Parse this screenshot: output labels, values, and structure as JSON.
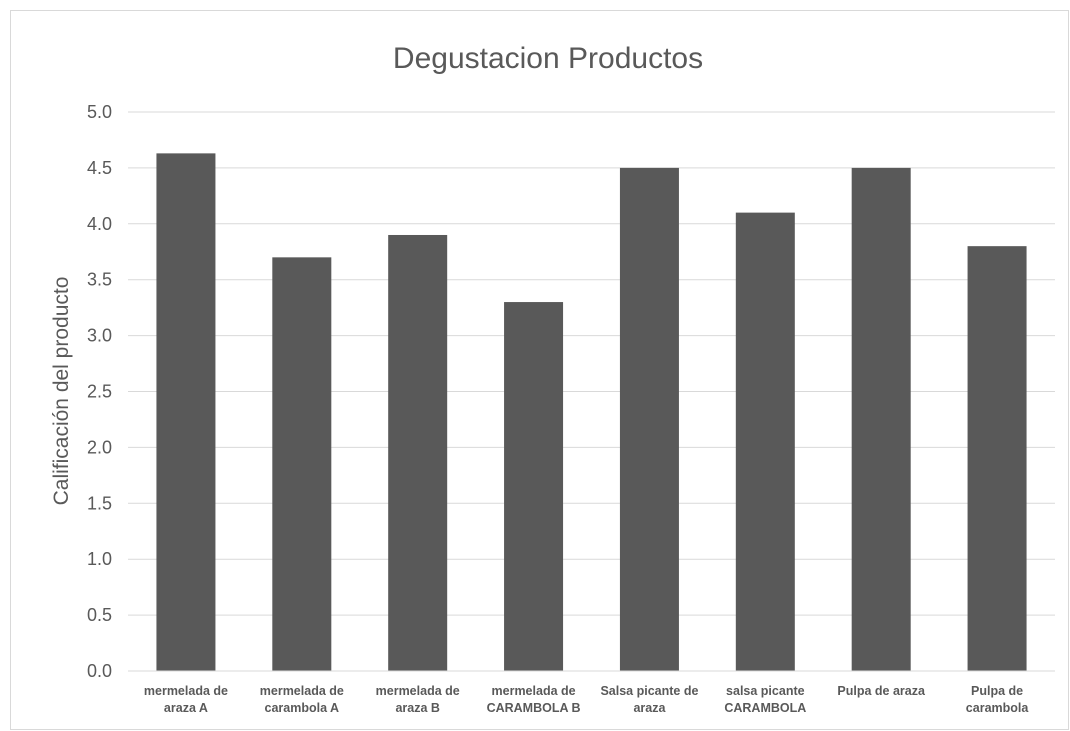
{
  "chart_data": {
    "type": "bar",
    "title": "Degustacion Productos",
    "xlabel": "",
    "ylabel": "Calificación del producto",
    "ylim": [
      0,
      5
    ],
    "yticks": [
      "0.0",
      "0.5",
      "1.0",
      "1.5",
      "2.0",
      "2.5",
      "3.0",
      "3.5",
      "4.0",
      "4.5",
      "5.0"
    ],
    "grid": true,
    "legend": "none",
    "bar_color": "#595959",
    "categories": [
      [
        "mermelada de",
        "araza A"
      ],
      [
        "mermelada de",
        "carambola A"
      ],
      [
        "mermelada de",
        "araza B"
      ],
      [
        "mermelada de",
        "CARAMBOLA B"
      ],
      [
        "Salsa picante de",
        "araza"
      ],
      [
        "salsa picante",
        "CARAMBOLA"
      ],
      [
        "Pulpa de araza"
      ],
      [
        "Pulpa de",
        "carambola"
      ]
    ],
    "values": [
      4.63,
      3.7,
      3.9,
      3.3,
      4.5,
      4.1,
      4.5,
      3.8
    ]
  }
}
